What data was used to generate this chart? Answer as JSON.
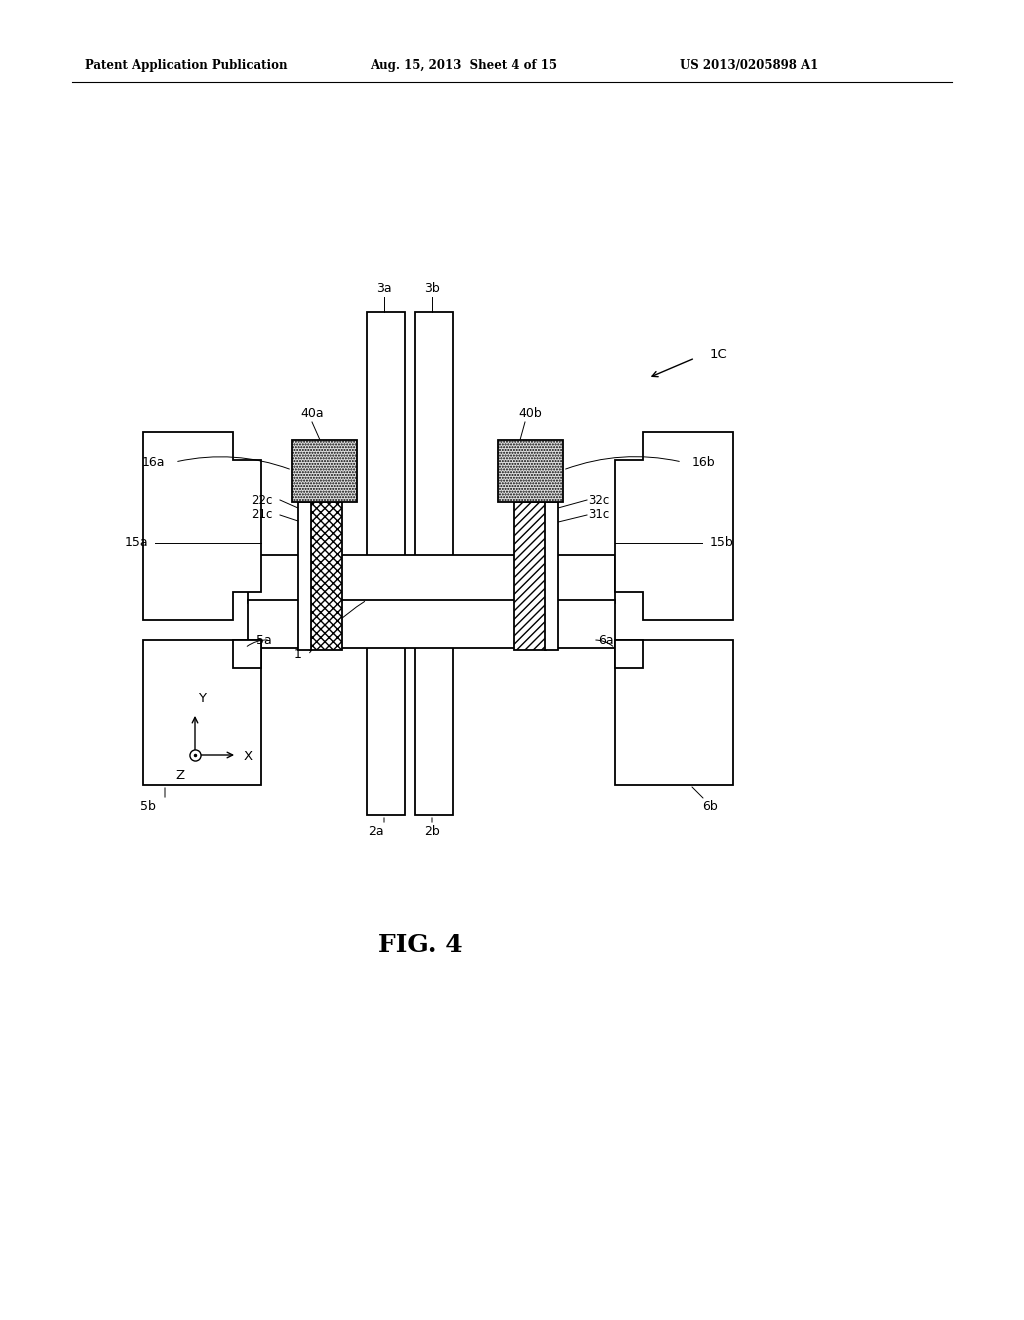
{
  "bg_color": "#ffffff",
  "line_color": "#000000",
  "header_left": "Patent Application Publication",
  "header_mid": "Aug. 15, 2013  Sheet 4 of 15",
  "header_right": "US 2013/0205898 A1",
  "fig_label": "FIG. 4"
}
